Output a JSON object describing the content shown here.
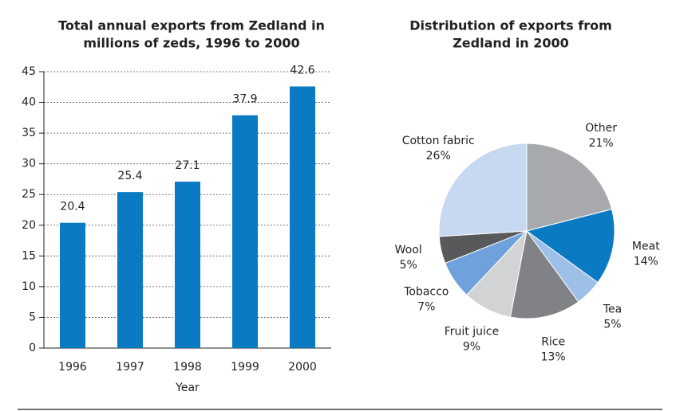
{
  "chart_data": [
    {
      "type": "bar",
      "title": [
        "Total annual exports from Zedland in",
        "millions of zeds, 1996 to 2000"
      ],
      "x_label": "Year",
      "categories": [
        "1996",
        "1997",
        "1998",
        "1999",
        "2000"
      ],
      "values": [
        20.4,
        25.4,
        27.1,
        37.9,
        42.6
      ],
      "color": "#0a7bc2",
      "ylim": [
        0,
        45
      ],
      "yticks": [
        0,
        5,
        10,
        15,
        20,
        25,
        30,
        35,
        40,
        45
      ],
      "grid": true
    },
    {
      "type": "pie",
      "title": [
        "Distribution of exports from",
        "Zedland in 2000"
      ],
      "categories": [
        "Other",
        "Meat",
        "Tea",
        "Rice",
        "Fruit juice",
        "Tobacco",
        "Wool",
        "Cotton fabric"
      ],
      "values": [
        21,
        14,
        5,
        13,
        9,
        7,
        5,
        26
      ],
      "value_labels": [
        "21%",
        "14%",
        "5%",
        "13%",
        "9%",
        "7%",
        "5%",
        "26%"
      ],
      "colors": [
        "#a7a9ac",
        "#0a7bc2",
        "#9dbfe8",
        "#808285",
        "#d1d3d4",
        "#6fa1dc",
        "#58595b",
        "#c6d9f1"
      ]
    }
  ]
}
